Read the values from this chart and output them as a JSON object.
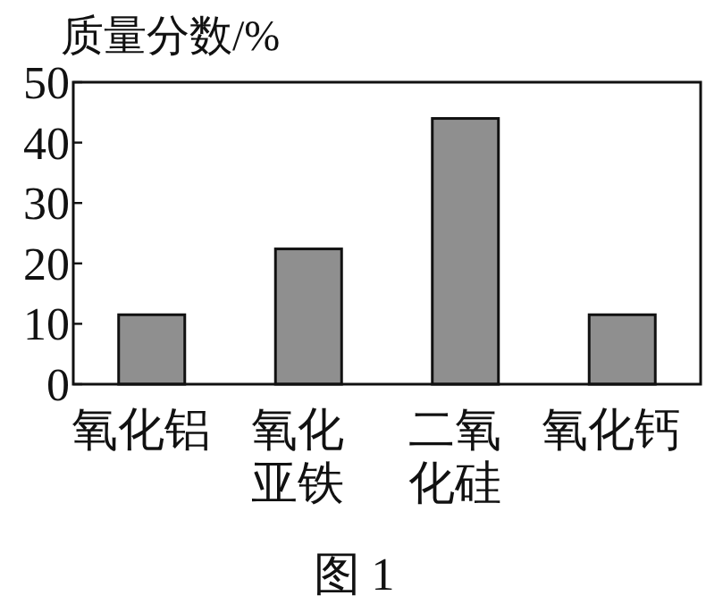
{
  "chart_data": {
    "type": "bar",
    "ylabel": "质量分数/%",
    "categories": [
      "氧化铝",
      "氧化亚铁",
      "二氧化硅",
      "氧化钙"
    ],
    "values": [
      11.5,
      22.4,
      44,
      11.5
    ],
    "color": "#8f8f8f",
    "ylim": [
      0,
      50
    ],
    "yticks": [
      0,
      10,
      20,
      30,
      40,
      50
    ],
    "annotations": [
      "图 1"
    ]
  }
}
